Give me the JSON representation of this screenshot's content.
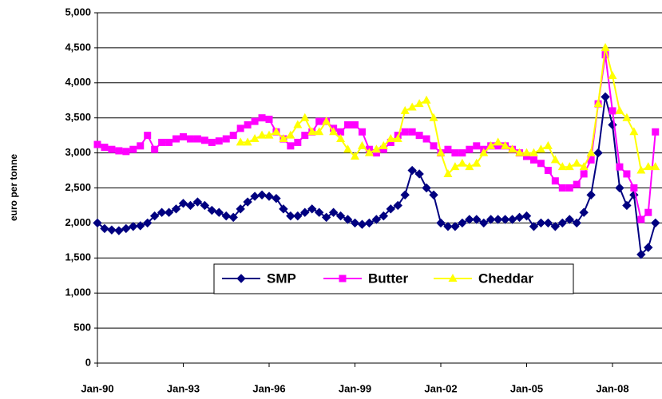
{
  "chart_data": {
    "type": "line",
    "y_label": "euro per tonne",
    "categories": [
      "Jan-90",
      null,
      null,
      null,
      null,
      null,
      null,
      null,
      null,
      null,
      null,
      null,
      "Jan-93",
      null,
      null,
      null,
      null,
      null,
      null,
      null,
      null,
      null,
      null,
      null,
      "Jan-96",
      null,
      null,
      null,
      null,
      null,
      null,
      null,
      null,
      null,
      null,
      null,
      "Jan-99",
      null,
      null,
      null,
      null,
      null,
      null,
      null,
      null,
      null,
      null,
      null,
      "Jan-02",
      null,
      null,
      null,
      null,
      null,
      null,
      null,
      null,
      null,
      null,
      null,
      "Jan-05",
      null,
      null,
      null,
      null,
      null,
      null,
      null,
      null,
      null,
      null,
      null,
      "Jan-08",
      null,
      null,
      null,
      null,
      null,
      null
    ],
    "series": [
      {
        "name": "SMP",
        "color": "#000080",
        "marker": "diamond",
        "values": [
          2000,
          1920,
          1900,
          1890,
          1920,
          1950,
          1960,
          2000,
          2100,
          2150,
          2150,
          2200,
          2280,
          2250,
          2300,
          2250,
          2180,
          2150,
          2100,
          2080,
          2200,
          2300,
          2380,
          2400,
          2380,
          2350,
          2200,
          2100,
          2100,
          2150,
          2200,
          2150,
          2080,
          2150,
          2100,
          2050,
          2000,
          1980,
          2000,
          2050,
          2100,
          2200,
          2250,
          2400,
          2750,
          2700,
          2500,
          2400,
          2000,
          1950,
          1950,
          2000,
          2050,
          2050,
          2000,
          2050,
          2050,
          2050,
          2050,
          2080,
          2100,
          1950,
          2000,
          2000,
          1950,
          2000,
          2050,
          2000,
          2150,
          2400,
          3000,
          3800,
          3400,
          2500,
          2250,
          2400,
          1550,
          1650,
          2000
        ]
      },
      {
        "name": "Butter",
        "color": "#ff00ff",
        "marker": "square",
        "values": [
          3120,
          3080,
          3050,
          3030,
          3020,
          3050,
          3100,
          3250,
          3050,
          3150,
          3150,
          3200,
          3230,
          3200,
          3200,
          3180,
          3150,
          3170,
          3200,
          3250,
          3350,
          3400,
          3450,
          3500,
          3480,
          3300,
          3200,
          3100,
          3150,
          3250,
          3300,
          3450,
          3450,
          3350,
          3300,
          3400,
          3400,
          3300,
          3050,
          3000,
          3050,
          3150,
          3250,
          3300,
          3300,
          3250,
          3200,
          3100,
          3000,
          3050,
          3000,
          3000,
          3050,
          3100,
          3050,
          3100,
          3100,
          3100,
          3050,
          3000,
          2950,
          2900,
          2850,
          2750,
          2600,
          2500,
          2500,
          2550,
          2700,
          2900,
          3700,
          4400,
          3600,
          2800,
          2700,
          2500,
          2050,
          2150,
          3300
        ]
      },
      {
        "name": "Cheddar",
        "color": "#ffff00",
        "marker": "triangle",
        "values": [
          null,
          null,
          null,
          null,
          null,
          null,
          null,
          null,
          null,
          null,
          null,
          null,
          null,
          null,
          null,
          null,
          null,
          null,
          null,
          null,
          3150,
          3150,
          3200,
          3250,
          3250,
          3300,
          3200,
          3250,
          3400,
          3500,
          3300,
          3300,
          3450,
          3300,
          3200,
          3050,
          2950,
          3100,
          3000,
          3050,
          3100,
          3200,
          3200,
          3600,
          3650,
          3700,
          3750,
          3500,
          3000,
          2700,
          2800,
          2850,
          2800,
          2850,
          3000,
          3100,
          3150,
          3100,
          3050,
          3000,
          3000,
          3000,
          3050,
          3100,
          2900,
          2800,
          2800,
          2850,
          2800,
          3000,
          3700,
          4500,
          4100,
          3600,
          3500,
          3300,
          2750,
          2800,
          2800
        ]
      }
    ],
    "ylim": [
      0,
      5000
    ],
    "yticks": [
      0,
      500,
      {
        "value": 1000,
        "label": "1,000"
      },
      {
        "value": 1500,
        "label": "1,500"
      },
      {
        "value": 2000,
        "label": "2,000"
      },
      {
        "value": 2500,
        "label": "2,500"
      },
      {
        "value": 3000,
        "label": "3,000"
      },
      {
        "value": 3500,
        "label": "3,500"
      },
      {
        "value": 4000,
        "label": "4,000"
      },
      {
        "value": 4500,
        "label": "4,500"
      },
      {
        "value": 5000,
        "label": "5,000"
      }
    ],
    "grid": true
  }
}
